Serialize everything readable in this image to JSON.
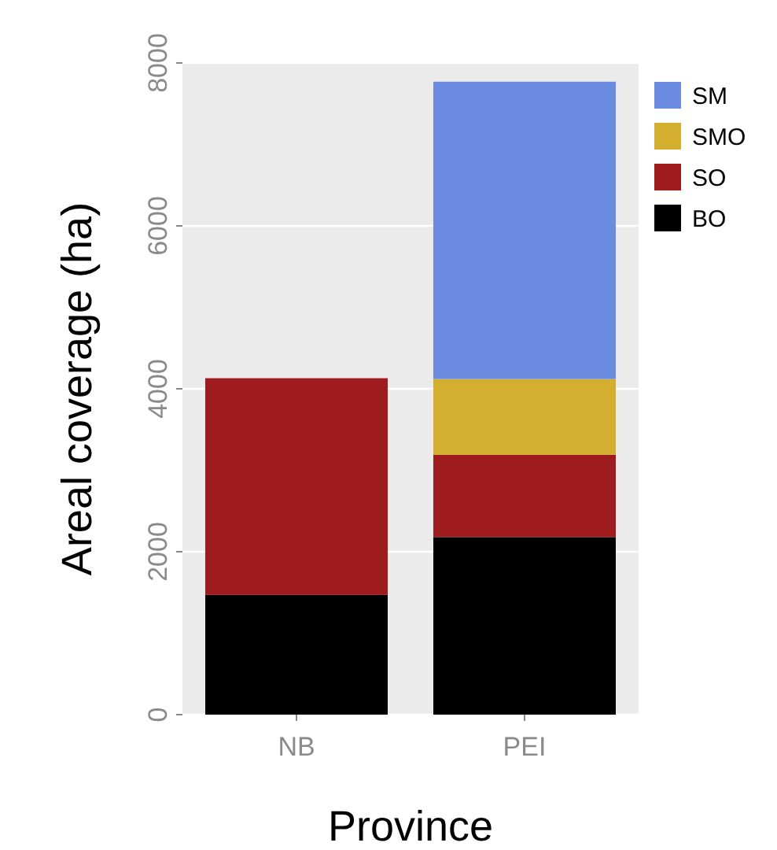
{
  "chart_data": {
    "type": "bar",
    "stacked": true,
    "xlabel": "Province",
    "ylabel": "Areal coverage (ha)",
    "categories": [
      "NB",
      "PEI"
    ],
    "series": [
      {
        "name": "BO",
        "color": "#000000",
        "values": [
          1470,
          2180
        ]
      },
      {
        "name": "SO",
        "color": "#9e1b1e",
        "values": [
          2660,
          1010
        ]
      },
      {
        "name": "SMO",
        "color": "#d4af2f",
        "values": [
          null,
          930
        ]
      },
      {
        "name": "SM",
        "color": "#6a8be0",
        "values": [
          null,
          3650
        ]
      }
    ],
    "ylim": [
      0,
      8000
    ],
    "yticks": [
      0,
      2000,
      4000,
      6000,
      8000
    ],
    "grid": "y",
    "legend": "right"
  }
}
